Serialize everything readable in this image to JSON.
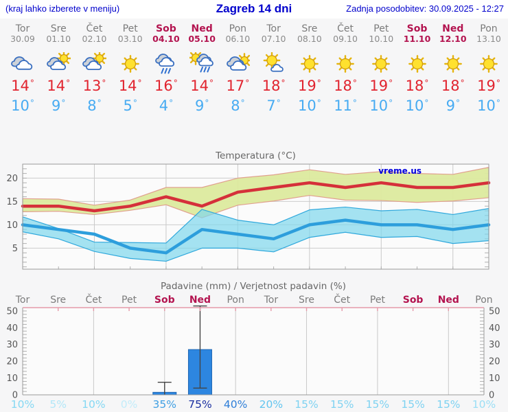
{
  "header": {
    "hint": "(kraj lahko izberete v meniju)",
    "title": "Zagreb 14 dni",
    "updated": "Zadnja posodobitev: 30.09.2025 - 12:27"
  },
  "units": {
    "degree": "°"
  },
  "colors": {
    "link_blue": "#0000cc",
    "day_gray": "#7b7b7b",
    "weekend_red": "#b3134f",
    "tmax_text": "#e1242f",
    "tmin_text": "#47abf2",
    "tmax_line": "#d5303a",
    "tmin_line": "#2d9edc",
    "warm_band": "#dcea9e",
    "warm_band_edge": "#e0a08e",
    "cool_band": "#7fd7ec",
    "cool_band_edge": "#2fa8dc",
    "bar_fill": "#2d86e0",
    "bar_stroke": "#1f66b3",
    "frame": "#9a9a9a",
    "grid": "#cccccc",
    "title_gray": "#666666",
    "top_line_pink": "#e59aa9",
    "watermark_blue": "#0000dd"
  },
  "days": [
    {
      "name": "Tor",
      "date": "30.09",
      "weekend": false,
      "icon": "cloudy",
      "tmax": 14,
      "tmin": 10
    },
    {
      "name": "Sre",
      "date": "01.10",
      "weekend": false,
      "icon": "partly-cloudy",
      "tmax": 14,
      "tmin": 9
    },
    {
      "name": "Čet",
      "date": "02.10",
      "weekend": false,
      "icon": "partly-cloudy",
      "tmax": 13,
      "tmin": 8
    },
    {
      "name": "Pet",
      "date": "03.10",
      "weekend": false,
      "icon": "sunny",
      "tmax": 14,
      "tmin": 5
    },
    {
      "name": "Sob",
      "date": "04.10",
      "weekend": true,
      "icon": "rain",
      "tmax": 16,
      "tmin": 4
    },
    {
      "name": "Ned",
      "date": "05.10",
      "weekend": true,
      "icon": "sun-rain",
      "tmax": 14,
      "tmin": 9
    },
    {
      "name": "Pon",
      "date": "06.10",
      "weekend": false,
      "icon": "mostly-cloudy",
      "tmax": 17,
      "tmin": 8
    },
    {
      "name": "Tor",
      "date": "07.10",
      "weekend": false,
      "icon": "partly-sunny",
      "tmax": 18,
      "tmin": 7
    },
    {
      "name": "Sre",
      "date": "08.10",
      "weekend": false,
      "icon": "sunny",
      "tmax": 19,
      "tmin": 10
    },
    {
      "name": "Čet",
      "date": "09.10",
      "weekend": false,
      "icon": "sunny",
      "tmax": 18,
      "tmin": 11
    },
    {
      "name": "Pet",
      "date": "10.10",
      "weekend": false,
      "icon": "sunny",
      "tmax": 19,
      "tmin": 10
    },
    {
      "name": "Sob",
      "date": "11.10",
      "weekend": true,
      "icon": "sunny",
      "tmax": 18,
      "tmin": 10
    },
    {
      "name": "Ned",
      "date": "12.10",
      "weekend": true,
      "icon": "sunny",
      "tmax": 18,
      "tmin": 9
    },
    {
      "name": "Pon",
      "date": "13.10",
      "weekend": false,
      "icon": "sunny",
      "tmax": 19,
      "tmin": 10
    }
  ],
  "chart_data": [
    {
      "type": "line",
      "title": "Temperatura (°C)",
      "watermark": "vreme.us",
      "x_categories": [
        "Tor",
        "Sre",
        "Čet",
        "Pet",
        "Sob",
        "Ned",
        "Pon",
        "Tor",
        "Sre",
        "Čet",
        "Pet",
        "Sob",
        "Ned",
        "Pon"
      ],
      "ylim": [
        0.5,
        23
      ],
      "yticks": [
        5,
        10,
        15,
        20
      ],
      "grid": true,
      "legend": "none",
      "series": [
        {
          "name": "tmax",
          "values": [
            14,
            14,
            13,
            14,
            16,
            14,
            17,
            18,
            19,
            18,
            19,
            18,
            18,
            19
          ]
        },
        {
          "name": "tmax_band_upper",
          "values": [
            15.6,
            15.5,
            14.2,
            15.3,
            18,
            18,
            20,
            20.7,
            21.8,
            20.8,
            21.4,
            21,
            20.8,
            22.3
          ]
        },
        {
          "name": "tmax_band_lower",
          "values": [
            12.8,
            12.9,
            12.2,
            13.1,
            14.3,
            11.5,
            14.2,
            15.1,
            16.3,
            15.3,
            15.2,
            14.8,
            15.1,
            15.8
          ]
        },
        {
          "name": "tmin",
          "values": [
            10,
            9,
            8,
            5,
            4,
            9,
            8,
            7,
            10,
            11,
            10,
            10,
            9,
            10
          ]
        },
        {
          "name": "tmin_band_upper",
          "values": [
            11.7,
            9.2,
            6.3,
            6.2,
            6.1,
            13.3,
            11,
            10,
            13.2,
            13.8,
            13,
            13.3,
            12.2,
            13.5
          ]
        },
        {
          "name": "tmin_band_lower",
          "values": [
            8.5,
            7,
            4.3,
            2.8,
            2.2,
            5,
            5,
            4.2,
            7.3,
            8.4,
            7.3,
            7.5,
            6,
            6.6
          ]
        }
      ]
    },
    {
      "type": "bar",
      "title": "Padavine (mm) / Verjetnost padavin (%)",
      "x_categories": [
        "Tor",
        "Sre",
        "Čet",
        "Pet",
        "Sob",
        "Ned",
        "Pon",
        "Tor",
        "Sre",
        "Čet",
        "Pet",
        "Sob",
        "Ned",
        "Pon"
      ],
      "ylim": [
        0,
        52
      ],
      "yticks": [
        0,
        10,
        20,
        30,
        40,
        50
      ],
      "values": [
        0,
        0,
        0,
        0,
        1.5,
        27,
        0,
        0,
        0,
        0,
        0,
        0,
        0,
        0
      ],
      "whiskers": [
        null,
        null,
        null,
        null,
        {
          "low": 0,
          "high": 7.5
        },
        {
          "low": 4,
          "high": 53
        },
        null,
        null,
        null,
        null,
        null,
        null,
        null,
        null
      ],
      "probabilities": [
        {
          "label": "10%",
          "color": "#85d8f3"
        },
        {
          "label": "5%",
          "color": "#b2e7f8"
        },
        {
          "label": "10%",
          "color": "#85d8f3"
        },
        {
          "label": "0%",
          "color": "#c2ecfa"
        },
        {
          "label": "35%",
          "color": "#3f9fe3"
        },
        {
          "label": "75%",
          "color": "#1b2fa0"
        },
        {
          "label": "40%",
          "color": "#2e7ed8"
        },
        {
          "label": "20%",
          "color": "#63c5ef"
        },
        {
          "label": "15%",
          "color": "#7fd2f1"
        },
        {
          "label": "15%",
          "color": "#7fd2f1"
        },
        {
          "label": "15%",
          "color": "#7fd2f1"
        },
        {
          "label": "15%",
          "color": "#7fd2f1"
        },
        {
          "label": "15%",
          "color": "#7fd2f1"
        },
        {
          "label": "10%",
          "color": "#9bdef5"
        }
      ]
    }
  ]
}
